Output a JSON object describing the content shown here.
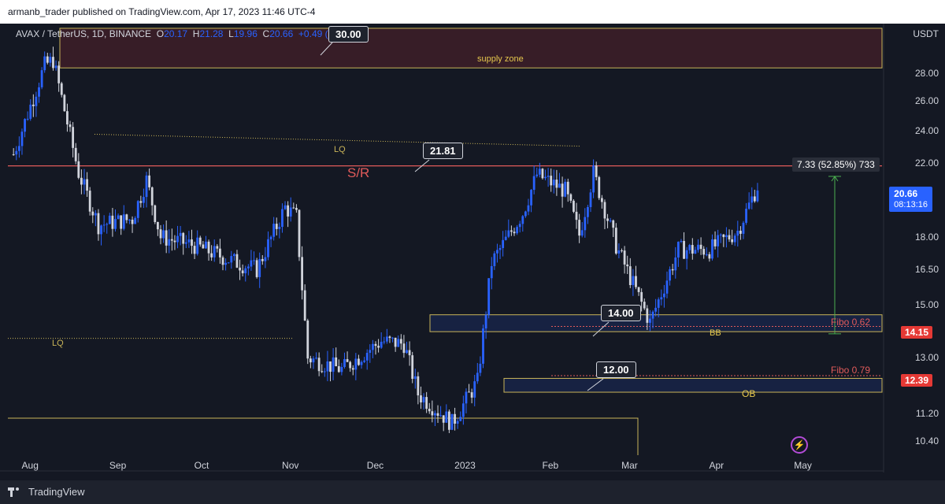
{
  "header": {
    "publisher": "armanb_trader published on TradingView.com, Apr 17, 2023 11:46 UTC-4"
  },
  "legend": {
    "symbol": "AVAX / TetherUS, 1D, BINANCE",
    "o_label": "O",
    "o": "20.17",
    "h_label": "H",
    "h": "21.28",
    "l_label": "L",
    "l": "19.96",
    "c_label": "C",
    "c": "20.66",
    "change": "+0.49 (+2"
  },
  "colors": {
    "up": "#2962ff",
    "down": "#d1d4dc",
    "background": "#141823",
    "sr_line": "#e05a5a",
    "zone_border": "#c9b458",
    "fibo": "#e05a5a",
    "range_arrow": "#4caf50"
  },
  "yaxis": {
    "unit": "USDT",
    "ticks": [
      "28.00",
      "26.00",
      "24.00",
      "22.00",
      "18.00",
      "16.50",
      "15.00",
      "13.00",
      "11.20",
      "10.40"
    ]
  },
  "xaxis": {
    "ticks": [
      "Aug",
      "Sep",
      "Oct",
      "Nov",
      "Dec",
      "2023",
      "Feb",
      "Mar",
      "Apr",
      "May"
    ]
  },
  "annotations": {
    "supply_zone": "supply zone",
    "sr": "S/R",
    "lq_top": "LQ",
    "lq_left": "LQ",
    "bb": "BB",
    "ob": "OB",
    "fibo_62": "Fibo 0.62",
    "fibo_79": "Fibo 0.79",
    "callout_30": "30.00",
    "callout_2181": "21.81",
    "callout_14": "14.00",
    "callout_12": "12.00",
    "range_measure": "7.33 (52.85%) 733"
  },
  "price_badges": {
    "last_price": "20.66",
    "countdown": "08:13:16",
    "fibo_62_price": "14.15",
    "fibo_79_price": "12.39"
  },
  "bottom_bar": {
    "brand": "TradingView"
  },
  "chart_data": {
    "type": "candlestick",
    "symbol": "AVAX / TetherUS",
    "interval": "1D",
    "exchange": "BINANCE",
    "ylabel": "USDT",
    "ylim": [
      10.0,
      32.0
    ],
    "scale": "log",
    "x_range": [
      "2023-07-29",
      "2023-05-31"
    ],
    "anchors": [
      {
        "date": "2022-07-28",
        "close": 22.5
      },
      {
        "date": "2022-08-08",
        "close": 28.6
      },
      {
        "date": "2022-08-11",
        "close": 29.0
      },
      {
        "date": "2022-08-20",
        "close": 21.4
      },
      {
        "date": "2022-08-27",
        "close": 18.6
      },
      {
        "date": "2022-09-08",
        "close": 18.9
      },
      {
        "date": "2022-09-13",
        "close": 21.0
      },
      {
        "date": "2022-09-18",
        "close": 18.0
      },
      {
        "date": "2022-09-30",
        "close": 17.6
      },
      {
        "date": "2022-10-13",
        "close": 16.9
      },
      {
        "date": "2022-10-22",
        "close": 16.5
      },
      {
        "date": "2022-11-01",
        "close": 19.5
      },
      {
        "date": "2022-11-05",
        "close": 19.0
      },
      {
        "date": "2022-11-09",
        "close": 13.0
      },
      {
        "date": "2022-11-21",
        "close": 12.6
      },
      {
        "date": "2022-12-05",
        "close": 13.6
      },
      {
        "date": "2022-12-13",
        "close": 13.5
      },
      {
        "date": "2022-12-18",
        "close": 11.8
      },
      {
        "date": "2022-12-30",
        "close": 10.9
      },
      {
        "date": "2023-01-08",
        "close": 12.2
      },
      {
        "date": "2023-01-13",
        "close": 16.8
      },
      {
        "date": "2023-01-24",
        "close": 19.2
      },
      {
        "date": "2023-01-29",
        "close": 21.3
      },
      {
        "date": "2023-02-08",
        "close": 20.4
      },
      {
        "date": "2023-02-13",
        "close": 18.1
      },
      {
        "date": "2023-02-18",
        "close": 21.4
      },
      {
        "date": "2023-02-26",
        "close": 17.6
      },
      {
        "date": "2023-03-10",
        "close": 14.3
      },
      {
        "date": "2023-03-20",
        "close": 17.4
      },
      {
        "date": "2023-03-31",
        "close": 17.4
      },
      {
        "date": "2023-04-10",
        "close": 18.3
      },
      {
        "date": "2023-04-17",
        "close": 20.66
      }
    ],
    "levels": [
      {
        "name": "supply zone",
        "from": 28.4,
        "to": 31.6
      },
      {
        "name": "S/R",
        "price": 21.81
      },
      {
        "name": "LQ",
        "price": 23.7
      },
      {
        "name": "LQ",
        "price": 13.7
      },
      {
        "name": "BB",
        "from": 13.95,
        "to": 14.6
      },
      {
        "name": "Fibo 0.62",
        "price": 14.15
      },
      {
        "name": "Fibo 0.79",
        "price": 12.39
      },
      {
        "name": "OB",
        "from": 11.85,
        "to": 12.3
      }
    ],
    "measure": {
      "from": 13.87,
      "to": 21.2,
      "text": "7.33 (52.85%) 733"
    }
  }
}
